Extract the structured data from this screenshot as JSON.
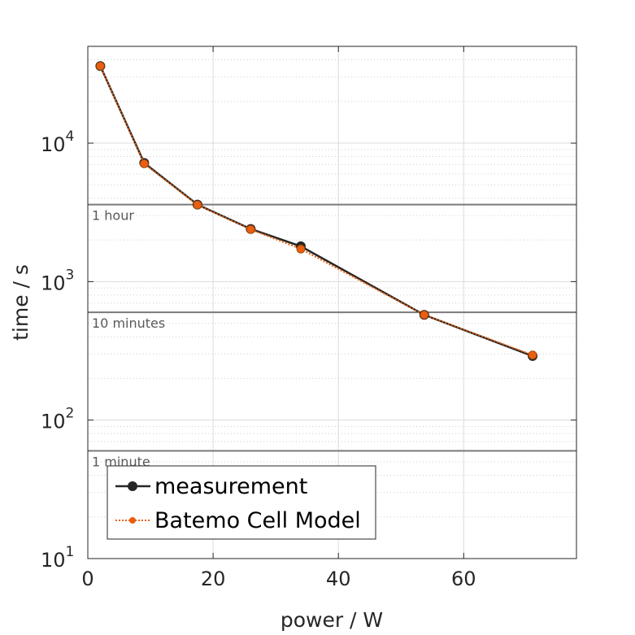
{
  "chart_data": {
    "type": "line",
    "title": "",
    "xlabel": "power / W",
    "ylabel": "time / s",
    "xlim": [
      0,
      78
    ],
    "ylim": [
      10,
      50000
    ],
    "yscale": "log",
    "grid": true,
    "legend_position": "bottom-left",
    "x_ticks": [
      0,
      20,
      40,
      60
    ],
    "x_tick_labels": [
      "0",
      "20",
      "40",
      "60"
    ],
    "y_ticks": [
      {
        "value": 10,
        "base": "10",
        "exp": "1"
      },
      {
        "value": 100,
        "base": "10",
        "exp": "2"
      },
      {
        "value": 1000,
        "base": "10",
        "exp": "3"
      },
      {
        "value": 10000,
        "base": "10",
        "exp": "4"
      }
    ],
    "reference_lines": [
      {
        "value": 3600,
        "label": "1 hour"
      },
      {
        "value": 600,
        "label": "10 minutes"
      },
      {
        "value": 60,
        "label": "1 minute"
      }
    ],
    "series": [
      {
        "name": "measurement",
        "color": "#262626",
        "style": "solid",
        "x": [
          2,
          9,
          17.5,
          26,
          34,
          53.7,
          71
        ],
        "y": [
          36000,
          7200,
          3600,
          2400,
          1800,
          575,
          290
        ]
      },
      {
        "name": "Batemo Cell Model",
        "color": "#E8600F",
        "style": "dotted",
        "x": [
          2,
          9,
          17.5,
          26,
          34,
          53.7,
          71
        ],
        "y": [
          36000,
          7100,
          3580,
          2380,
          1720,
          575,
          295
        ]
      }
    ]
  }
}
